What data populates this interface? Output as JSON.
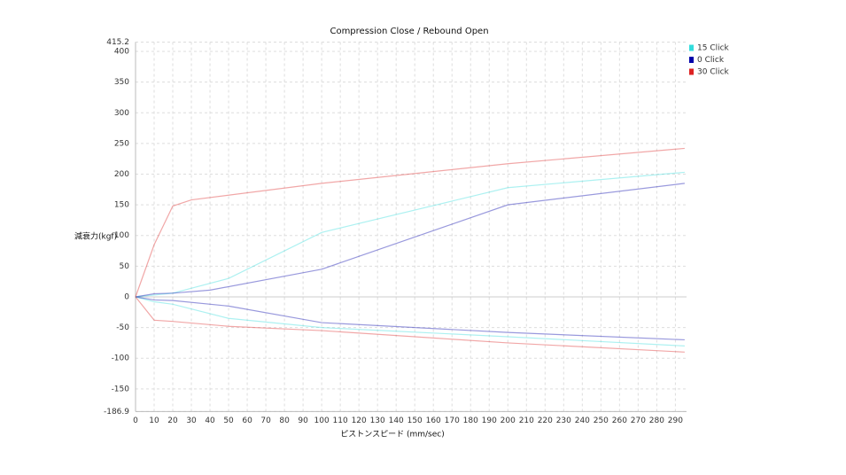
{
  "chart_data": {
    "type": "line",
    "title": "Compression Close / Rebound Open",
    "x_label": "ピストンスピード (mm/sec)",
    "y_label": "減衰力(kgf)",
    "xlim": [
      0,
      296
    ],
    "ylim": [
      -186.9,
      415.2
    ],
    "xticks": [
      0,
      10,
      20,
      30,
      40,
      50,
      60,
      70,
      80,
      90,
      100,
      110,
      120,
      130,
      140,
      150,
      160,
      170,
      180,
      190,
      200,
      210,
      220,
      230,
      240,
      250,
      260,
      270,
      280,
      290
    ],
    "yticks": [
      -186.9,
      -150,
      -100,
      -50,
      0,
      50,
      100,
      150,
      200,
      250,
      300,
      350,
      400,
      415.2
    ],
    "grid": true,
    "legend": "top-right",
    "series": [
      {
        "name": "15 Click",
        "color": "#33dddd",
        "x": [
          0,
          10,
          20,
          50,
          100,
          200,
          295,
          null,
          0,
          10,
          20,
          50,
          100,
          200,
          295
        ],
        "values": [
          0,
          3,
          6,
          30,
          105,
          178,
          203,
          null,
          0,
          -8,
          -12,
          -35,
          -50,
          -65,
          -80
        ]
      },
      {
        "name": "0 Click",
        "color": "#0000aa",
        "x": [
          0,
          10,
          20,
          40,
          100,
          200,
          295,
          null,
          0,
          10,
          20,
          50,
          100,
          200,
          295
        ],
        "values": [
          0,
          5,
          6,
          11,
          45,
          150,
          185,
          null,
          0,
          -5,
          -6,
          -15,
          -42,
          -58,
          -70
        ]
      },
      {
        "name": "30 Click",
        "color": "#dd2222",
        "x": [
          0,
          10,
          20,
          30,
          100,
          200,
          295,
          null,
          0,
          10,
          20,
          50,
          100,
          200,
          295
        ],
        "values": [
          0,
          85,
          148,
          158,
          185,
          217,
          242,
          null,
          0,
          -38,
          -40,
          -48,
          -55,
          -75,
          -90
        ]
      }
    ]
  }
}
